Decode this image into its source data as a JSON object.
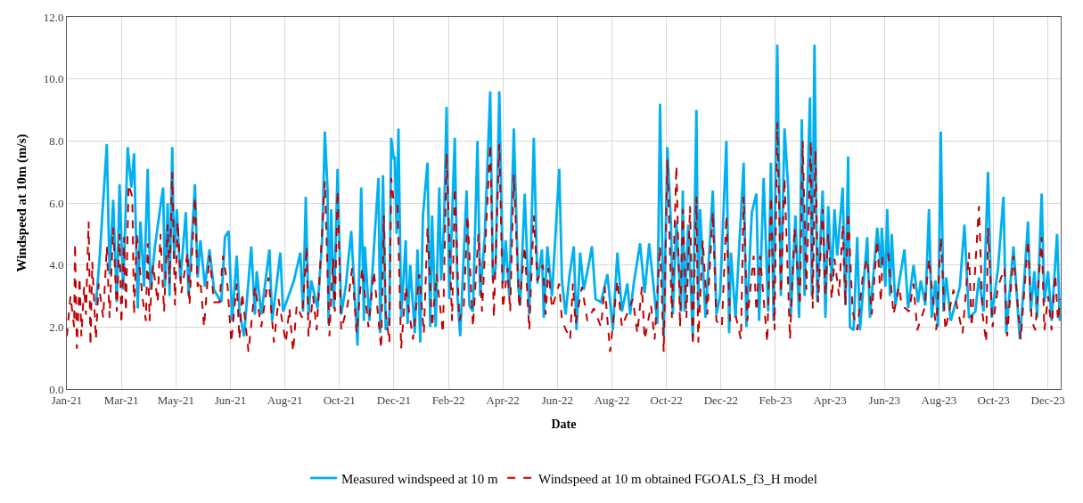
{
  "chart_data": {
    "type": "line",
    "xlabel": "Date",
    "ylabel": "Windspeed at 10m (m/s)",
    "xlim": [
      "2021-01-01",
      "2023-12-31"
    ],
    "xticks": [
      {
        "value": "2021-01-01",
        "label": "Jan-21"
      },
      {
        "value": "2021-03-02",
        "label": "Mar-21"
      },
      {
        "value": "2021-05-01",
        "label": "May-21"
      },
      {
        "value": "2021-06-30",
        "label": "Jun-21"
      },
      {
        "value": "2021-08-29",
        "label": "Aug-21"
      },
      {
        "value": "2021-10-28",
        "label": "Oct-21"
      },
      {
        "value": "2021-12-27",
        "label": "Dec-21"
      },
      {
        "value": "2022-02-25",
        "label": "Feb-22"
      },
      {
        "value": "2022-04-26",
        "label": "Apr-22"
      },
      {
        "value": "2022-06-25",
        "label": "Jun-22"
      },
      {
        "value": "2022-08-24",
        "label": "Aug-22"
      },
      {
        "value": "2022-10-23",
        "label": "Oct-22"
      },
      {
        "value": "2022-12-22",
        "label": "Dec-22"
      },
      {
        "value": "2023-02-20",
        "label": "Feb-23"
      },
      {
        "value": "2023-04-21",
        "label": "Apr-23"
      },
      {
        "value": "2023-06-20",
        "label": "Jun-23"
      },
      {
        "value": "2023-08-19",
        "label": "Aug-23"
      },
      {
        "value": "2023-10-18",
        "label": "Oct-23"
      },
      {
        "value": "2023-12-17",
        "label": "Dec-23"
      }
    ],
    "ylim": [
      0,
      12
    ],
    "yticks": [
      {
        "value": 0,
        "label": "0.0"
      },
      {
        "value": 2,
        "label": "2.0"
      },
      {
        "value": 4,
        "label": "4.0"
      },
      {
        "value": 6,
        "label": "6.0"
      },
      {
        "value": 8,
        "label": "8.0"
      },
      {
        "value": 10,
        "label": "10.0"
      },
      {
        "value": 12,
        "label": "12.0"
      }
    ],
    "grid": true,
    "legend": "bottom",
    "marker": "none",
    "series": [
      {
        "name": "Measured windspeed at 10 m",
        "color": "#00b0f0",
        "line_style": "solid",
        "x": [
          "2021-02-02",
          "2021-02-06",
          "2021-02-14",
          "2021-02-17",
          "2021-02-21",
          "2021-02-25",
          "2021-02-28",
          "2021-03-04",
          "2021-03-09",
          "2021-03-13",
          "2021-03-16",
          "2021-03-20",
          "2021-03-23",
          "2021-03-27",
          "2021-03-31",
          "2021-04-03",
          "2021-04-08",
          "2021-04-15",
          "2021-04-17",
          "2021-04-19",
          "2021-04-22",
          "2021-04-24",
          "2021-04-27",
          "2021-04-29",
          "2021-05-02",
          "2021-05-06",
          "2021-05-12",
          "2021-05-15",
          "2021-05-22",
          "2021-05-25",
          "2021-05-28",
          "2021-06-02",
          "2021-06-07",
          "2021-06-12",
          "2021-06-20",
          "2021-06-24",
          "2021-06-28",
          "2021-07-02",
          "2021-07-07",
          "2021-07-10",
          "2021-07-15",
          "2021-07-23",
          "2021-07-27",
          "2021-07-29",
          "2021-08-03",
          "2021-08-12",
          "2021-08-15",
          "2021-08-24",
          "2021-08-27",
          "2021-09-08",
          "2021-09-15",
          "2021-09-18",
          "2021-09-21",
          "2021-09-24",
          "2021-09-27",
          "2021-10-04",
          "2021-10-09",
          "2021-10-12",
          "2021-10-15",
          "2021-10-16",
          "2021-10-19",
          "2021-10-22",
          "2021-10-26",
          "2021-10-30",
          "2021-11-04",
          "2021-11-10",
          "2021-11-17",
          "2021-11-21",
          "2021-11-24",
          "2021-11-25",
          "2021-11-30",
          "2021-12-06",
          "2021-12-10",
          "2021-12-12",
          "2021-12-15",
          "2021-12-18",
          "2021-12-22",
          "2021-12-24",
          "2021-12-27",
          "2021-12-28",
          "2021-12-30",
          "2022-01-01",
          "2022-01-04",
          "2022-01-09",
          "2022-01-11",
          "2022-01-14",
          "2022-01-19",
          "2022-01-22",
          "2022-01-25",
          "2022-01-28",
          "2022-02-02",
          "2022-02-05",
          "2022-02-07",
          "2022-02-11",
          "2022-02-15",
          "2022-02-17",
          "2022-02-20",
          "2022-02-23",
          "2022-02-26",
          "2022-03-04",
          "2022-03-07",
          "2022-03-10",
          "2022-03-17",
          "2022-03-20",
          "2022-03-24",
          "2022-03-29",
          "2022-04-01",
          "2022-04-06",
          "2022-04-12",
          "2022-04-15",
          "2022-04-18",
          "2022-04-22",
          "2022-04-26",
          "2022-04-29",
          "2022-05-03",
          "2022-05-08",
          "2022-05-13",
          "2022-05-15",
          "2022-05-20",
          "2022-05-25",
          "2022-05-30",
          "2022-06-03",
          "2022-06-08",
          "2022-06-10",
          "2022-06-14",
          "2022-06-19",
          "2022-06-27",
          "2022-06-30",
          "2022-07-04",
          "2022-07-08",
          "2022-07-13",
          "2022-07-16",
          "2022-07-20",
          "2022-07-24",
          "2022-07-30",
          "2022-08-02",
          "2022-08-06",
          "2022-08-12",
          "2022-08-19",
          "2022-08-25",
          "2022-08-30",
          "2022-09-04",
          "2022-09-10",
          "2022-09-13",
          "2022-09-17",
          "2022-09-24",
          "2022-09-29",
          "2022-10-04",
          "2022-10-13",
          "2022-10-16",
          "2022-10-20",
          "2022-10-24",
          "2022-10-28",
          "2022-10-30",
          "2022-11-03",
          "2022-11-08",
          "2022-11-10",
          "2022-11-12",
          "2022-11-16",
          "2022-11-21",
          "2022-11-25",
          "2022-11-27",
          "2022-11-29",
          "2022-12-05",
          "2022-12-13",
          "2022-12-17",
          "2022-12-21",
          "2022-12-28",
          "2022-12-31",
          "2023-01-02",
          "2023-01-07",
          "2023-01-16",
          "2023-01-19",
          "2023-01-25",
          "2023-01-30",
          "2023-02-02",
          "2023-02-07",
          "2023-02-12",
          "2023-02-15",
          "2023-02-18",
          "2023-02-22",
          "2023-02-26",
          "2023-03-02",
          "2023-03-06",
          "2023-03-09",
          "2023-03-14",
          "2023-03-18",
          "2023-03-21",
          "2023-03-24",
          "2023-03-30",
          "2023-04-01",
          "2023-04-04",
          "2023-04-07",
          "2023-04-13",
          "2023-04-16",
          "2023-04-19",
          "2023-04-23",
          "2023-04-26",
          "2023-04-29",
          "2023-05-05",
          "2023-05-08",
          "2023-05-11",
          "2023-05-13",
          "2023-05-17",
          "2023-05-21",
          "2023-05-24",
          "2023-06-01",
          "2023-06-04",
          "2023-06-12",
          "2023-06-16",
          "2023-06-17",
          "2023-06-21",
          "2023-06-23",
          "2023-06-26",
          "2023-06-28",
          "2023-07-02",
          "2023-07-12",
          "2023-07-16",
          "2023-07-22",
          "2023-07-27",
          "2023-07-30",
          "2023-08-04",
          "2023-08-08",
          "2023-08-11",
          "2023-08-15",
          "2023-08-18",
          "2023-08-21",
          "2023-08-24",
          "2023-08-27",
          "2023-09-01",
          "2023-09-11",
          "2023-09-16",
          "2023-09-21",
          "2023-09-28",
          "2023-10-02",
          "2023-10-07",
          "2023-10-12",
          "2023-10-16",
          "2023-10-23",
          "2023-10-29",
          "2023-11-01",
          "2023-11-09",
          "2023-11-16",
          "2023-11-21",
          "2023-11-25",
          "2023-11-28",
          "2023-12-02",
          "2023-12-05",
          "2023-12-10",
          "2023-12-13",
          "2023-12-17",
          "2023-12-21",
          "2023-12-27",
          "2023-12-30"
        ],
        "values": [
          2.7,
          4.2,
          7.9,
          3.7,
          6.1,
          2.8,
          6.6,
          3.2,
          7.8,
          6.5,
          7.6,
          2.6,
          5.4,
          3.3,
          7.1,
          3.2,
          4.6,
          6.1,
          6.5,
          3.3,
          6.0,
          3.0,
          7.8,
          4.2,
          5.8,
          3.5,
          5.7,
          3.0,
          6.6,
          3.6,
          4.8,
          3.3,
          4.5,
          3.2,
          2.8,
          4.9,
          5.1,
          2.2,
          4.3,
          2.5,
          1.7,
          4.6,
          2.4,
          3.8,
          2.4,
          4.5,
          2.2,
          4.4,
          2.5,
          3.5,
          4.4,
          2.5,
          6.2,
          2.4,
          3.5,
          2.6,
          4.8,
          8.3,
          6.4,
          2.1,
          5.8,
          2.6,
          7.1,
          2.4,
          3.3,
          5.1,
          1.4,
          6.5,
          2.2,
          4.6,
          2.2,
          5.0,
          6.8,
          1.8,
          6.9,
          1.9,
          2.3,
          8.1,
          7.4,
          7.5,
          5.0,
          8.4,
          2.3,
          4.8,
          2.1,
          4.0,
          1.8,
          4.5,
          1.5,
          5.6,
          7.3,
          2.0,
          5.6,
          2.0,
          6.5,
          3.5,
          5.2,
          9.1,
          2.9,
          8.1,
          3.0,
          1.7,
          6.4,
          2.7,
          2.5,
          8.0,
          3.0,
          4.9,
          9.6,
          3.5,
          3.9,
          9.6,
          3.4,
          4.8,
          3.0,
          8.4,
          3.3,
          2.7,
          6.3,
          2.4,
          8.1,
          3.4,
          4.5,
          2.3,
          4.6,
          3.0,
          7.1,
          3.5,
          2.4,
          3.6,
          4.6,
          1.9,
          4.4,
          3.2,
          4.1,
          4.6,
          2.9,
          2.8,
          3.7,
          1.9,
          4.4,
          2.5,
          3.4,
          2.4,
          3.4,
          4.7,
          3.1,
          4.7,
          2.1,
          9.2,
          1.7,
          7.8,
          5.3,
          2.4,
          5.4,
          2.5,
          6.4,
          2.5,
          5.3,
          1.7,
          9.0,
          2.6,
          5.8,
          2.3,
          6.4,
          2.4,
          3.0,
          8.0,
          1.8,
          4.4,
          2.3,
          7.3,
          2.0,
          5.7,
          6.3,
          2.2,
          6.8,
          2.5,
          7.3,
          2.2,
          11.1,
          3.0,
          8.4,
          6.5,
          2.4,
          5.6,
          2.3,
          8.7,
          3.0,
          9.4,
          3.0,
          11.1,
          2.8,
          6.4,
          2.3,
          5.9,
          3.5,
          5.8,
          4.3,
          6.5,
          2.7,
          7.5,
          2.0,
          1.9,
          4.9,
          1.9,
          4.9,
          2.3,
          5.2,
          3.9,
          5.2,
          3.3,
          5.8,
          3.0,
          5.0,
          2.7,
          4.5,
          2.6,
          4.0,
          2.8,
          3.5,
          2.7,
          5.8,
          2.3,
          3.5,
          2.0,
          8.3,
          2.5,
          3.6,
          2.2,
          3.3,
          5.3,
          2.3,
          2.5,
          3.6,
          2.5,
          7.0,
          2.3,
          3.9,
          6.2,
          1.8,
          4.6,
          1.6,
          3.6,
          5.4,
          2.5,
          3.8,
          2.3,
          6.3,
          2.8,
          3.8,
          2.2,
          5.0,
          2.2
        ]
      },
      {
        "name": "Windspeed at 10 m obtained FGOALS_f3_H model",
        "color": "#c00000",
        "line_style": "dashed",
        "x": [
          "2021-01-01",
          "2021-01-05",
          "2021-01-09",
          "2021-01-10",
          "2021-01-12",
          "2021-01-15",
          "2021-01-17",
          "2021-01-20",
          "2021-01-22",
          "2021-01-25",
          "2021-01-27",
          "2021-01-29",
          "2021-02-02",
          "2021-02-05",
          "2021-02-10",
          "2021-02-14",
          "2021-02-17",
          "2021-02-21",
          "2021-02-25",
          "2021-02-28",
          "2021-03-02",
          "2021-03-05",
          "2021-03-07",
          "2021-03-10",
          "2021-03-14",
          "2021-03-16",
          "2021-03-19",
          "2021-03-25",
          "2021-03-29",
          "2021-03-31",
          "2021-04-02",
          "2021-04-06",
          "2021-04-11",
          "2021-04-14",
          "2021-04-18",
          "2021-04-22",
          "2021-04-24",
          "2021-04-27",
          "2021-04-30",
          "2021-05-03",
          "2021-05-07",
          "2021-05-14",
          "2021-05-16",
          "2021-05-22",
          "2021-05-25",
          "2021-05-28",
          "2021-06-01",
          "2021-06-07",
          "2021-06-12",
          "2021-06-18",
          "2021-06-22",
          "2021-06-27",
          "2021-07-01",
          "2021-07-07",
          "2021-07-10",
          "2021-07-13",
          "2021-07-20",
          "2021-07-27",
          "2021-08-03",
          "2021-08-11",
          "2021-08-17",
          "2021-08-22",
          "2021-08-30",
          "2021-09-03",
          "2021-09-07",
          "2021-09-11",
          "2021-09-17",
          "2021-09-22",
          "2021-09-24",
          "2021-09-29",
          "2021-10-03",
          "2021-10-12",
          "2021-10-17",
          "2021-10-21",
          "2021-10-23",
          "2021-10-26",
          "2021-10-30",
          "2021-11-06",
          "2021-11-11",
          "2021-11-16",
          "2021-11-22",
          "2021-11-29",
          "2021-12-05",
          "2021-12-13",
          "2021-12-16",
          "2021-12-18",
          "2021-12-22",
          "2021-12-24",
          "2021-12-27",
          "2021-12-31",
          "2022-01-04",
          "2022-01-09",
          "2022-01-17",
          "2022-01-24",
          "2022-01-29",
          "2022-02-02",
          "2022-02-07",
          "2022-02-12",
          "2022-02-19",
          "2022-02-23",
          "2022-03-01",
          "2022-03-04",
          "2022-03-09",
          "2022-03-14",
          "2022-03-18",
          "2022-03-24",
          "2022-03-30",
          "2022-04-03",
          "2022-04-12",
          "2022-04-16",
          "2022-04-22",
          "2022-04-26",
          "2022-05-01",
          "2022-05-04",
          "2022-05-08",
          "2022-05-14",
          "2022-05-20",
          "2022-05-25",
          "2022-05-30",
          "2022-06-03",
          "2022-06-09",
          "2022-06-12",
          "2022-06-15",
          "2022-06-19",
          "2022-06-27",
          "2022-06-30",
          "2022-07-09",
          "2022-07-12",
          "2022-07-15",
          "2022-07-22",
          "2022-07-28",
          "2022-08-04",
          "2022-08-12",
          "2022-08-16",
          "2022-08-22",
          "2022-08-30",
          "2022-09-04",
          "2022-09-16",
          "2022-09-21",
          "2022-09-26",
          "2022-09-29",
          "2022-10-06",
          "2022-10-10",
          "2022-10-16",
          "2022-10-20",
          "2022-10-24",
          "2022-10-29",
          "2022-11-03",
          "2022-11-07",
          "2022-11-10",
          "2022-11-14",
          "2022-11-18",
          "2022-11-21",
          "2022-11-25",
          "2022-11-27",
          "2022-12-02",
          "2022-12-07",
          "2022-12-13",
          "2022-12-17",
          "2022-12-23",
          "2022-12-28",
          "2023-01-01",
          "2023-01-07",
          "2023-01-13",
          "2023-01-16",
          "2023-01-20",
          "2023-01-27",
          "2023-01-30",
          "2023-02-03",
          "2023-02-11",
          "2023-02-15",
          "2023-02-19",
          "2023-02-22",
          "2023-02-26",
          "2023-03-02",
          "2023-03-08",
          "2023-03-13",
          "2023-03-19",
          "2023-03-22",
          "2023-03-26",
          "2023-03-31",
          "2023-04-02",
          "2023-04-05",
          "2023-04-08",
          "2023-04-13",
          "2023-04-16",
          "2023-04-19",
          "2023-04-23",
          "2023-04-26",
          "2023-05-01",
          "2023-05-05",
          "2023-05-08",
          "2023-05-11",
          "2023-05-16",
          "2023-05-21",
          "2023-05-27",
          "2023-06-01",
          "2023-06-06",
          "2023-06-12",
          "2023-06-16",
          "2023-06-18",
          "2023-06-24",
          "2023-06-30",
          "2023-07-06",
          "2023-07-09",
          "2023-07-17",
          "2023-07-22",
          "2023-07-26",
          "2023-08-03",
          "2023-08-08",
          "2023-08-16",
          "2023-08-21",
          "2023-08-26",
          "2023-09-04",
          "2023-09-14",
          "2023-09-21",
          "2023-09-24",
          "2023-10-02",
          "2023-10-06",
          "2023-10-10",
          "2023-10-12",
          "2023-10-17",
          "2023-10-23",
          "2023-10-30",
          "2023-11-02",
          "2023-11-09",
          "2023-11-17",
          "2023-11-25",
          "2023-11-29",
          "2023-12-03",
          "2023-12-10",
          "2023-12-13",
          "2023-12-17",
          "2023-12-21",
          "2023-12-25",
          "2023-12-28",
          "2023-12-30"
        ],
        "values": [
          1.7,
          3.0,
          2.0,
          4.7,
          1.3,
          3.6,
          1.7,
          3.3,
          2.4,
          5.4,
          1.4,
          4.1,
          1.6,
          3.4,
          2.3,
          4.6,
          2.3,
          5.2,
          2.5,
          5.0,
          2.1,
          4.9,
          2.5,
          6.6,
          6.2,
          2.4,
          5.0,
          3.0,
          2.2,
          4.7,
          2.2,
          4.0,
          2.8,
          5.0,
          2.5,
          5.3,
          3.4,
          7.0,
          2.7,
          5.4,
          3.1,
          4.4,
          2.7,
          6.2,
          3.3,
          3.5,
          2.0,
          4.3,
          2.8,
          2.8,
          4.3,
          3.3,
          1.5,
          3.4,
          1.6,
          3.1,
          1.2,
          3.3,
          2.0,
          3.6,
          1.5,
          2.9,
          1.5,
          2.6,
          1.2,
          2.7,
          2.3,
          4.6,
          1.7,
          3.0,
          1.9,
          6.7,
          1.7,
          4.2,
          2.5,
          6.4,
          1.9,
          2.7,
          3.9,
          1.8,
          3.9,
          2.0,
          3.8,
          1.3,
          5.6,
          2.5,
          1.5,
          6.8,
          6.0,
          5.9,
          1.3,
          3.3,
          1.6,
          3.7,
          1.8,
          5.2,
          2.0,
          3.7,
          1.8,
          7.6,
          2.2,
          6.5,
          2.2,
          2.7,
          5.6,
          2.0,
          5.0,
          2.5,
          7.9,
          2.3,
          7.9,
          2.6,
          3.9,
          2.5,
          6.9,
          2.6,
          4.6,
          1.9,
          5.6,
          3.5,
          4.0,
          2.4,
          3.9,
          2.6,
          3.4,
          2.2,
          1.6,
          3.4,
          2.1,
          3.3,
          2.2,
          2.6,
          2.0,
          3.3,
          1.2,
          3.5,
          2.0,
          2.9,
          1.8,
          3.3,
          1.6,
          2.7,
          1.6,
          4.6,
          1.2,
          7.4,
          2.3,
          7.2,
          2.0,
          5.8,
          2.3,
          5.9,
          1.4,
          6.2,
          1.5,
          4.8,
          2.4,
          5.7,
          2.2,
          2.0,
          5.6,
          2.2,
          2.4,
          1.6,
          6.2,
          2.2,
          4.3,
          2.5,
          4.3,
          1.5,
          6.2,
          1.9,
          8.6,
          3.1,
          6.8,
          1.6,
          5.2,
          2.7,
          8.0,
          3.2,
          8.0,
          2.6,
          7.7,
          2.8,
          5.8,
          3.0,
          5.0,
          2.9,
          4.2,
          3.0,
          5.3,
          2.7,
          5.7,
          2.5,
          1.9,
          3.6,
          4.2,
          2.4,
          4.8,
          2.8,
          4.3,
          4.4,
          2.4,
          3.3,
          2.7,
          2.5,
          3.4,
          1.9,
          2.6,
          4.2,
          1.9,
          4.9,
          1.9,
          3.2,
          1.8,
          4.4,
          2.0,
          5.9,
          2.4,
          1.5,
          5.2,
          2.0,
          3.3,
          3.9,
          1.7,
          4.3,
          1.6,
          4.8,
          2.2,
          1.9,
          4.9,
          1.9,
          3.0,
          1.9,
          3.7,
          2.2,
          2.9
        ]
      }
    ]
  }
}
